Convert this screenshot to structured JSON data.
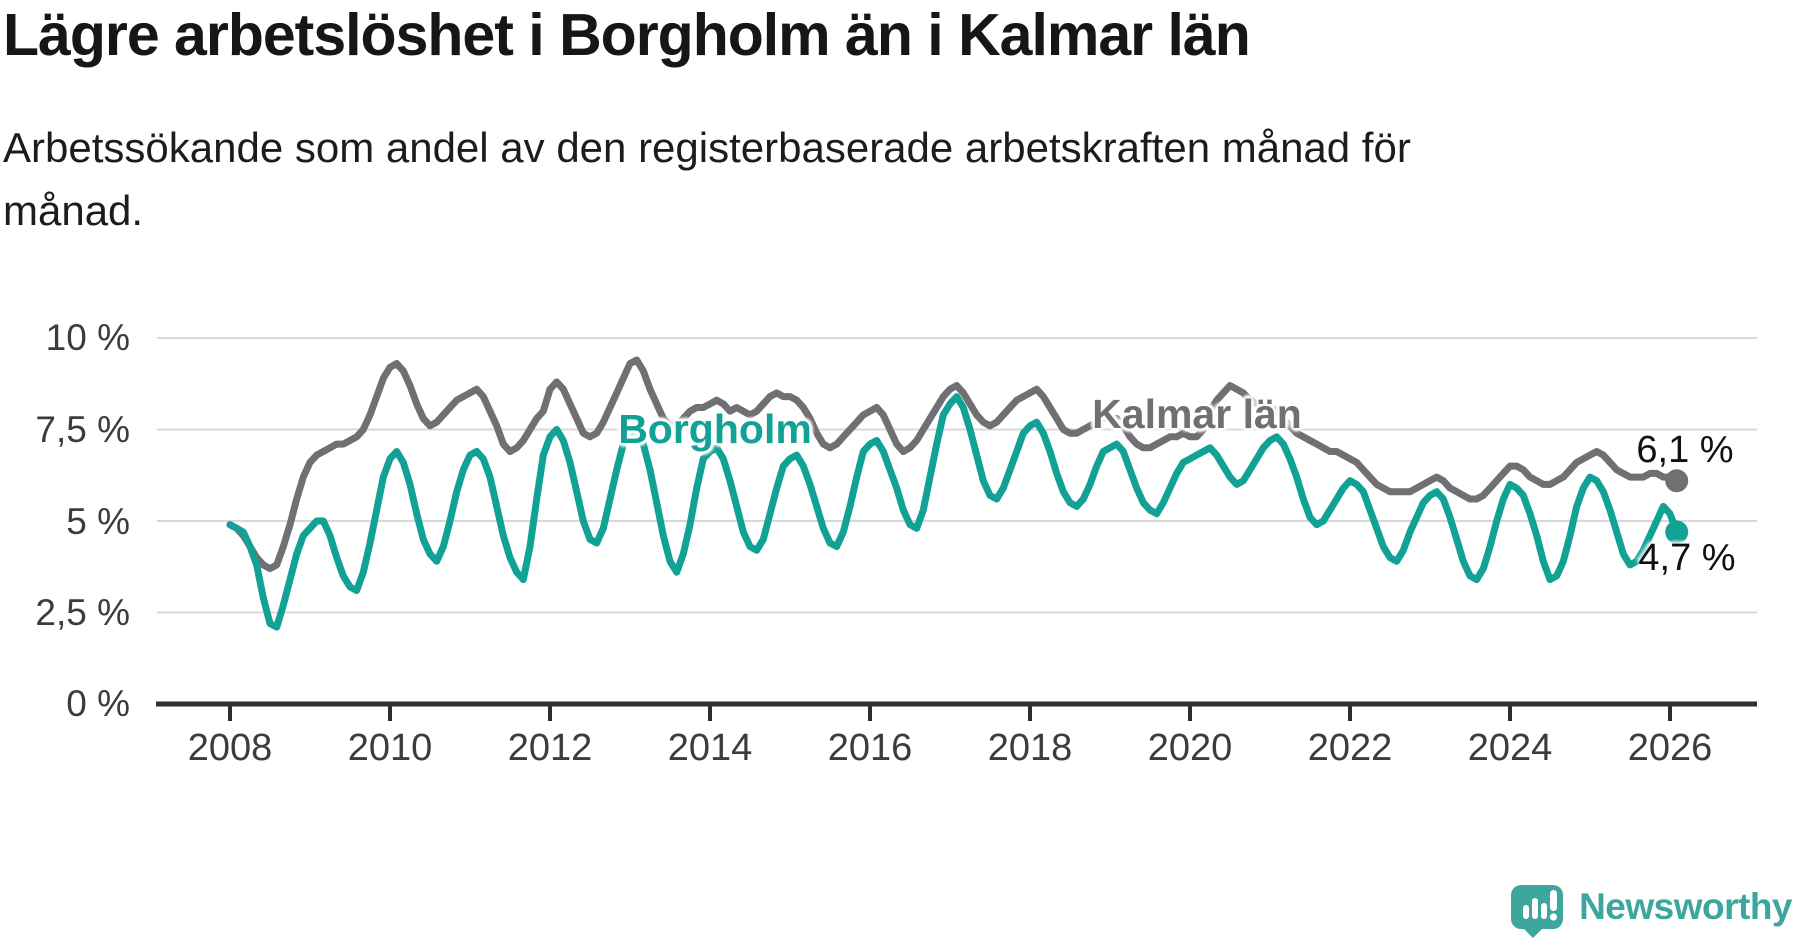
{
  "chart_data": {
    "type": "line",
    "title": "Lägre arbetslöshet i Borgholm än i Kalmar län",
    "subtitle": "Arbetssökande som andel av den registerbaserade arbetskraften månad för månad.",
    "unit": "%",
    "frequency": "monthly",
    "x_start": "2008-01",
    "x_end": "2026-02",
    "grid": true,
    "legend_position": "inline-labels",
    "ylim": [
      0,
      10.5
    ],
    "y_ticks": [
      "10 %",
      "7,5 %",
      "5 %",
      "2,5 %",
      "0 %"
    ],
    "y_tick_values": [
      10,
      7.5,
      5,
      2.5,
      0
    ],
    "x_ticks": [
      "2008",
      "2010",
      "2012",
      "2014",
      "2016",
      "2018",
      "2020",
      "2022",
      "2024",
      "2026"
    ],
    "x_tick_years": [
      2008,
      2010,
      2012,
      2014,
      2016,
      2018,
      2020,
      2022,
      2024,
      2026
    ],
    "series": [
      {
        "name": "Kalmar län",
        "color": "#6F6F74",
        "end_label": "6,1 %",
        "end_value": 6.1,
        "values": [
          4.9,
          4.8,
          4.6,
          4.3,
          4.0,
          3.8,
          3.7,
          3.8,
          4.3,
          4.9,
          5.6,
          6.2,
          6.6,
          6.8,
          6.9,
          7.0,
          7.1,
          7.1,
          7.2,
          7.3,
          7.5,
          7.9,
          8.4,
          8.9,
          9.2,
          9.3,
          9.1,
          8.7,
          8.2,
          7.8,
          7.6,
          7.7,
          7.9,
          8.1,
          8.3,
          8.4,
          8.5,
          8.6,
          8.4,
          8.0,
          7.6,
          7.1,
          6.9,
          7.0,
          7.2,
          7.5,
          7.8,
          8.0,
          8.6,
          8.8,
          8.6,
          8.2,
          7.8,
          7.4,
          7.3,
          7.4,
          7.7,
          8.1,
          8.5,
          8.9,
          9.3,
          9.4,
          9.1,
          8.6,
          8.2,
          7.8,
          7.6,
          7.6,
          7.8,
          8.0,
          8.1,
          8.1,
          8.2,
          8.3,
          8.2,
          8.0,
          8.1,
          8.0,
          7.9,
          8.0,
          8.2,
          8.4,
          8.5,
          8.4,
          8.4,
          8.3,
          8.1,
          7.8,
          7.4,
          7.1,
          7.0,
          7.1,
          7.3,
          7.5,
          7.7,
          7.9,
          8.0,
          8.1,
          7.9,
          7.5,
          7.1,
          6.9,
          7.0,
          7.2,
          7.5,
          7.8,
          8.1,
          8.4,
          8.6,
          8.7,
          8.5,
          8.2,
          7.9,
          7.7,
          7.6,
          7.7,
          7.9,
          8.1,
          8.3,
          8.4,
          8.5,
          8.6,
          8.4,
          8.1,
          7.8,
          7.5,
          7.4,
          7.4,
          7.5,
          7.6,
          7.7,
          7.8,
          7.8,
          7.8,
          7.6,
          7.3,
          7.1,
          7.0,
          7.0,
          7.1,
          7.2,
          7.3,
          7.3,
          7.4,
          7.3,
          7.3,
          7.5,
          8.0,
          8.3,
          8.5,
          8.7,
          8.6,
          8.5,
          8.3,
          8.2,
          8.2,
          8.1,
          8.0,
          7.8,
          7.6,
          7.4,
          7.3,
          7.2,
          7.1,
          7.0,
          6.9,
          6.9,
          6.8,
          6.7,
          6.6,
          6.4,
          6.2,
          6.0,
          5.9,
          5.8,
          5.8,
          5.8,
          5.8,
          5.9,
          6.0,
          6.1,
          6.2,
          6.1,
          5.9,
          5.8,
          5.7,
          5.6,
          5.6,
          5.7,
          5.9,
          6.1,
          6.3,
          6.5,
          6.5,
          6.4,
          6.2,
          6.1,
          6.0,
          6.0,
          6.1,
          6.2,
          6.4,
          6.6,
          6.7,
          6.8,
          6.9,
          6.8,
          6.6,
          6.4,
          6.3,
          6.2,
          6.2,
          6.2,
          6.3,
          6.3,
          6.2,
          6.2,
          6.1
        ]
      },
      {
        "name": "Borgholm",
        "color": "#12A195",
        "end_label": "4,7 %",
        "end_value": 4.7,
        "values": [
          4.9,
          4.8,
          4.7,
          4.3,
          3.8,
          2.9,
          2.2,
          2.1,
          2.7,
          3.4,
          4.1,
          4.6,
          4.8,
          5.0,
          5.0,
          4.6,
          4.0,
          3.5,
          3.2,
          3.1,
          3.6,
          4.4,
          5.3,
          6.2,
          6.7,
          6.9,
          6.6,
          6.0,
          5.2,
          4.5,
          4.1,
          3.9,
          4.3,
          5.0,
          5.8,
          6.4,
          6.8,
          6.9,
          6.7,
          6.2,
          5.4,
          4.6,
          4.0,
          3.6,
          3.4,
          4.3,
          5.6,
          6.8,
          7.3,
          7.5,
          7.2,
          6.6,
          5.8,
          5.0,
          4.5,
          4.4,
          4.8,
          5.6,
          6.4,
          7.1,
          7.4,
          7.5,
          7.1,
          6.4,
          5.5,
          4.6,
          3.9,
          3.6,
          4.1,
          4.9,
          5.9,
          6.7,
          6.9,
          7.0,
          6.7,
          6.1,
          5.4,
          4.7,
          4.3,
          4.2,
          4.5,
          5.2,
          5.9,
          6.5,
          6.7,
          6.8,
          6.5,
          6.0,
          5.4,
          4.8,
          4.4,
          4.3,
          4.7,
          5.4,
          6.2,
          6.9,
          7.1,
          7.2,
          6.9,
          6.4,
          5.9,
          5.3,
          4.9,
          4.8,
          5.3,
          6.2,
          7.1,
          7.9,
          8.2,
          8.4,
          8.1,
          7.5,
          6.8,
          6.1,
          5.7,
          5.6,
          5.9,
          6.4,
          6.9,
          7.4,
          7.6,
          7.7,
          7.4,
          6.9,
          6.3,
          5.8,
          5.5,
          5.4,
          5.6,
          6.0,
          6.5,
          6.9,
          7.0,
          7.1,
          6.9,
          6.4,
          5.9,
          5.5,
          5.3,
          5.2,
          5.5,
          5.9,
          6.3,
          6.6,
          6.7,
          6.8,
          6.9,
          7.0,
          6.8,
          6.5,
          6.2,
          6.0,
          6.1,
          6.4,
          6.7,
          7.0,
          7.2,
          7.3,
          7.1,
          6.7,
          6.2,
          5.6,
          5.1,
          4.9,
          5.0,
          5.3,
          5.6,
          5.9,
          6.1,
          6.0,
          5.8,
          5.3,
          4.8,
          4.3,
          4.0,
          3.9,
          4.2,
          4.7,
          5.1,
          5.5,
          5.7,
          5.8,
          5.6,
          5.1,
          4.5,
          3.9,
          3.5,
          3.4,
          3.7,
          4.3,
          5.0,
          5.6,
          6.0,
          5.9,
          5.7,
          5.2,
          4.6,
          3.9,
          3.4,
          3.5,
          3.9,
          4.6,
          5.4,
          5.9,
          6.2,
          6.1,
          5.8,
          5.3,
          4.7,
          4.1,
          3.8,
          3.9,
          4.2,
          4.6,
          5.0,
          5.4,
          5.2,
          4.7
        ]
      }
    ],
    "colors": {
      "gridline": "#D8D8D8",
      "axis": "#2F2F2F",
      "tick_text": "#3C3C3C"
    }
  },
  "branding": {
    "logo_text": "Newsworthy",
    "logo_color": "#3EA79D",
    "logo_icon": "speech-bubble-bar-chart-exclamation"
  }
}
